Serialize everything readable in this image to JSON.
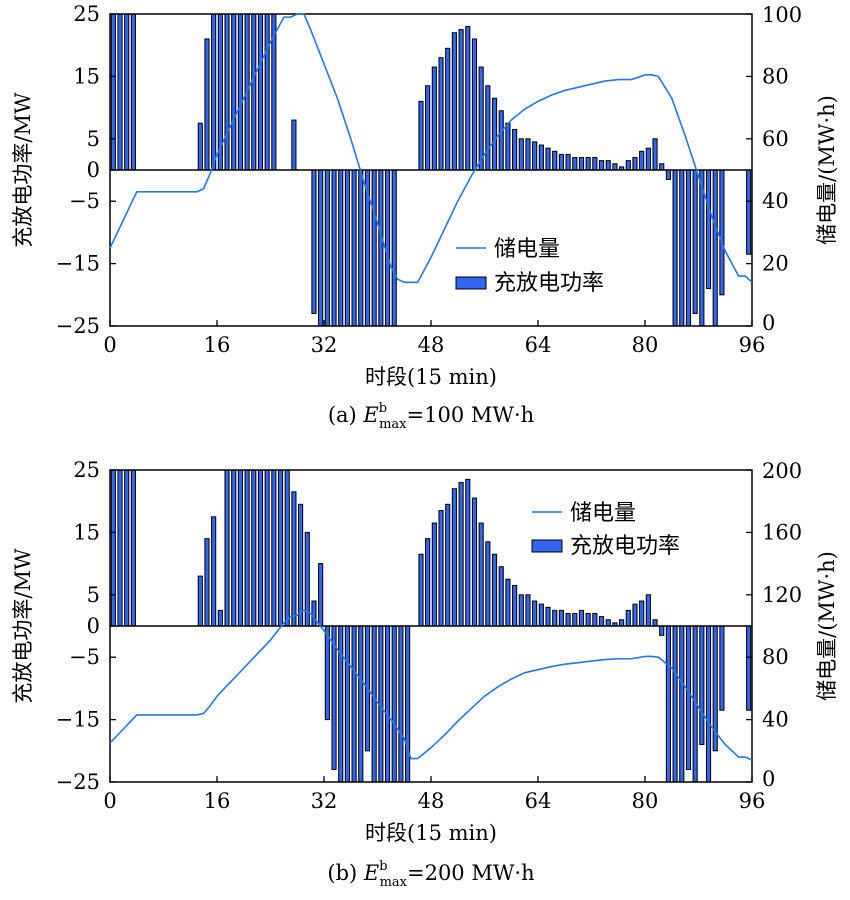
{
  "chart_data": [
    {
      "type": "bar+line",
      "caption_prefix": "(a) ",
      "caption_var": "E",
      "caption_sup": "b",
      "caption_sub": "max",
      "caption_rest": "=100 MW·h",
      "xlabel": "时段(15 min)",
      "ylabel_left": "充放电功率/MW",
      "ylabel_right": "储电量/(MW·h)",
      "x_ticks": [
        "0",
        "16",
        "32",
        "48",
        "64",
        "80",
        "96"
      ],
      "y_left_ticks": [
        "25",
        "15",
        "5",
        "0",
        "−5",
        "−15",
        "−25"
      ],
      "y_left_tick_values": [
        25,
        15,
        5,
        0,
        -5,
        -15,
        -25
      ],
      "y_right_ticks": [
        "100",
        "80",
        "60",
        "40",
        "20",
        "0"
      ],
      "y_right_tick_values": [
        100,
        80,
        60,
        40,
        20,
        0
      ],
      "xlim": [
        0,
        96
      ],
      "ylim_left": [
        -25,
        25
      ],
      "ylim_right": [
        0,
        100
      ],
      "legend": {
        "line": "储电量",
        "bar": "充放电功率",
        "placement": "lower-center"
      },
      "colors": {
        "bar": "#3366ee",
        "line": "#2277ee"
      },
      "bar_series": {
        "name": "充放电功率",
        "x": [
          1,
          2,
          3,
          4,
          14,
          15,
          16,
          17,
          18,
          19,
          20,
          21,
          22,
          23,
          24,
          25,
          28,
          31,
          32,
          33,
          34,
          35,
          36,
          37,
          38,
          39,
          40,
          41,
          42,
          43,
          47,
          48,
          49,
          50,
          51,
          52,
          53,
          54,
          55,
          56,
          57,
          58,
          59,
          60,
          61,
          62,
          63,
          64,
          65,
          66,
          67,
          68,
          69,
          70,
          71,
          72,
          73,
          74,
          75,
          76,
          77,
          78,
          79,
          80,
          81,
          82,
          83,
          84,
          85,
          86,
          87,
          88,
          89,
          90,
          91,
          92,
          96
        ],
        "values": [
          25,
          25,
          25,
          25,
          7.5,
          21,
          25,
          25,
          25,
          25,
          25,
          25,
          25,
          25,
          25,
          25,
          8,
          -23,
          -25,
          -25,
          -25,
          -25,
          -25,
          -25,
          -25,
          -25,
          -25,
          -25,
          -25,
          -25,
          11,
          13.5,
          16.5,
          18,
          19.5,
          22,
          22.5,
          23,
          21,
          16.5,
          13.5,
          11.5,
          9.5,
          7.5,
          6.5,
          5,
          5,
          4.5,
          4,
          3.5,
          3,
          2.5,
          2.5,
          2,
          2,
          2,
          2,
          1.5,
          1.5,
          1,
          0.5,
          1.5,
          2,
          3,
          3.5,
          5,
          1,
          -1.5,
          -25,
          -25,
          -25,
          -23,
          -25,
          -19,
          -25,
          -20,
          -13.5
        ]
      },
      "line_series": {
        "name": "储电量",
        "x": [
          0,
          4,
          13,
          14,
          15,
          16,
          18,
          20,
          22,
          24,
          26,
          27,
          28,
          29,
          30,
          32,
          34,
          36,
          38,
          40,
          42,
          43,
          44,
          46,
          48,
          50,
          52,
          54,
          56,
          58,
          60,
          62,
          64,
          66,
          68,
          70,
          72,
          74,
          76,
          78,
          80,
          81,
          82,
          84,
          86,
          88,
          90,
          92,
          94,
          95,
          96
        ],
        "y": [
          25,
          43,
          43,
          44,
          49,
          55,
          64,
          73,
          82,
          91,
          99,
          99,
          100,
          100,
          95,
          84,
          73,
          60,
          46,
          33,
          19,
          15,
          14,
          14,
          22,
          31,
          40,
          48,
          55,
          61,
          66,
          69.5,
          72,
          74,
          75.5,
          76.5,
          77.5,
          78.5,
          79,
          79,
          80.5,
          80.5,
          80,
          73,
          61,
          48,
          35,
          24,
          16,
          16,
          14
        ]
      }
    },
    {
      "type": "bar+line",
      "caption_prefix": "(b) ",
      "caption_var": "E",
      "caption_sup": "b",
      "caption_sub": "max",
      "caption_rest": "=200 MW·h",
      "xlabel": "时段(15 min)",
      "ylabel_left": "充放电功率/MW",
      "ylabel_right": "储电量/(MW·h)",
      "x_ticks": [
        "0",
        "16",
        "32",
        "48",
        "64",
        "80",
        "96"
      ],
      "y_left_ticks": [
        "25",
        "15",
        "5",
        "0",
        "−5",
        "−15",
        "−25"
      ],
      "y_left_tick_values": [
        25,
        15,
        5,
        0,
        -5,
        -15,
        -25
      ],
      "y_right_ticks": [
        "200",
        "160",
        "120",
        "80",
        "40",
        "0"
      ],
      "y_right_tick_values": [
        200,
        160,
        120,
        80,
        40,
        0
      ],
      "xlim": [
        0,
        96
      ],
      "ylim_left": [
        -25,
        25
      ],
      "ylim_right": [
        0,
        200
      ],
      "legend": {
        "line": "储电量",
        "bar": "充放电功率",
        "placement": "upper-right"
      },
      "colors": {
        "bar": "#3366ee",
        "line": "#2277ee"
      },
      "bar_series": {
        "name": "充放电功率",
        "x": [
          1,
          2,
          3,
          4,
          14,
          15,
          16,
          17,
          18,
          19,
          20,
          21,
          22,
          23,
          24,
          25,
          26,
          27,
          28,
          29,
          30,
          31,
          32,
          33,
          34,
          35,
          36,
          37,
          38,
          39,
          40,
          41,
          42,
          43,
          44,
          45,
          47,
          48,
          49,
          50,
          51,
          52,
          53,
          54,
          55,
          56,
          57,
          58,
          59,
          60,
          61,
          62,
          63,
          64,
          65,
          66,
          67,
          68,
          69,
          70,
          71,
          72,
          73,
          74,
          75,
          76,
          77,
          78,
          79,
          80,
          81,
          82,
          83,
          84,
          85,
          86,
          87,
          88,
          89,
          90,
          91,
          92,
          96
        ],
        "values": [
          25,
          25,
          25,
          25,
          8,
          14,
          17.5,
          2.5,
          25,
          25,
          25,
          25,
          25,
          25,
          25,
          25,
          25,
          25,
          21.5,
          19.5,
          15,
          4,
          10,
          -15,
          -23,
          -25,
          -25,
          -25,
          -25,
          -20,
          -25,
          -25,
          -25,
          -25,
          -25,
          -25,
          11.5,
          14,
          16.5,
          18.5,
          19.5,
          22,
          23,
          23.5,
          20.5,
          16.5,
          13.5,
          11.5,
          9.5,
          7.5,
          6.5,
          5,
          5,
          4,
          3.5,
          3,
          2.5,
          2.5,
          2,
          2,
          2.5,
          2,
          2,
          1.5,
          1,
          0.5,
          1,
          2.5,
          3.5,
          4,
          5,
          1,
          -1.5,
          -25,
          -25,
          -25,
          -23,
          -25,
          -19,
          -25,
          -20,
          -13.5,
          -13.5
        ]
      },
      "line_series": {
        "name": "储电量",
        "x": [
          0,
          4,
          13,
          14,
          15,
          16,
          18,
          20,
          22,
          24,
          26,
          27,
          28,
          29,
          30,
          32,
          34,
          36,
          38,
          40,
          42,
          44,
          45,
          46,
          48,
          50,
          52,
          54,
          56,
          58,
          60,
          62,
          64,
          66,
          68,
          70,
          72,
          74,
          76,
          78,
          80,
          81,
          82,
          84,
          86,
          88,
          90,
          92,
          94,
          95,
          96
        ],
        "y": [
          25,
          43,
          43,
          44,
          49,
          55,
          64,
          73,
          82,
          91,
          102,
          106,
          107,
          110,
          108,
          97,
          85,
          74,
          63,
          51,
          40,
          28,
          15,
          15,
          22,
          30,
          39,
          47,
          55,
          61,
          66,
          70,
          72,
          74,
          75.5,
          76.5,
          77.5,
          78.5,
          79,
          79,
          80.5,
          80.5,
          80,
          73,
          61,
          48,
          35,
          24,
          16,
          16,
          14
        ]
      }
    }
  ]
}
